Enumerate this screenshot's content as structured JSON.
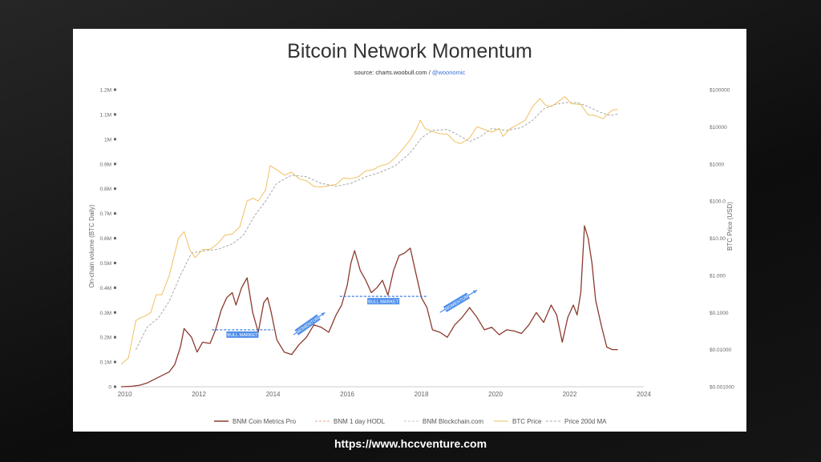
{
  "chart_data": {
    "type": "line",
    "title": "Bitcoin Network Momentum",
    "subtitle_source": "source: charts.woobull.com / ",
    "subtitle_handle": "@woonomic",
    "y_left_label": "On-chain volume (BTC Daily)",
    "y_right_label": "BTC Price (USD)",
    "y_left_ticks": [
      "0",
      "0.1M",
      "0.2M",
      "0.3M",
      "0.4M",
      "0.5M",
      "0.6M",
      "0.7M",
      "0.8M",
      "0.9M",
      "1M",
      "1.1M",
      "1.2M"
    ],
    "y_left_range": [
      0,
      1200000
    ],
    "y_right_ticks": [
      "$0.001000",
      "$0.01000",
      "$0.1000",
      "$1.000",
      "$10.00",
      "$100.0",
      "$1000",
      "$10000",
      "$100000"
    ],
    "y_right_log_range": [
      0.001,
      100000
    ],
    "x_ticks": [
      "2010",
      "2012",
      "2014",
      "2016",
      "2018",
      "2020",
      "2022",
      "2024"
    ],
    "x_range": [
      2009.9,
      2024
    ],
    "grid": false,
    "legend_position": "bottom",
    "series": [
      {
        "name": "BNM Coin Metrics Pro",
        "color": "#8b3a2e",
        "axis": "left",
        "x": [
          2009.9,
          2010.2,
          2010.4,
          2010.6,
          2010.8,
          2011.0,
          2011.2,
          2011.35,
          2011.5,
          2011.6,
          2011.8,
          2011.95,
          2012.1,
          2012.3,
          2012.45,
          2012.6,
          2012.75,
          2012.9,
          2013.0,
          2013.15,
          2013.3,
          2013.45,
          2013.6,
          2013.75,
          2013.85,
          2013.95,
          2014.1,
          2014.3,
          2014.5,
          2014.7,
          2014.9,
          2015.1,
          2015.3,
          2015.5,
          2015.7,
          2015.85,
          2016.0,
          2016.1,
          2016.2,
          2016.35,
          2016.5,
          2016.65,
          2016.8,
          2016.95,
          2017.1,
          2017.25,
          2017.4,
          2017.55,
          2017.7,
          2017.85,
          2018.0,
          2018.15,
          2018.3,
          2018.5,
          2018.7,
          2018.9,
          2019.1,
          2019.3,
          2019.5,
          2019.7,
          2019.9,
          2020.1,
          2020.3,
          2020.5,
          2020.7,
          2020.9,
          2021.1,
          2021.3,
          2021.5,
          2021.65,
          2021.8,
          2021.95,
          2022.1,
          2022.2,
          2022.3,
          2022.4,
          2022.5,
          2022.6,
          2022.7,
          2022.85,
          2023.0,
          2023.15,
          2023.3
        ],
        "values": [
          0,
          2000,
          6000,
          15000,
          30000,
          45000,
          60000,
          90000,
          160000,
          235000,
          200000,
          140000,
          180000,
          175000,
          230000,
          310000,
          360000,
          380000,
          330000,
          400000,
          440000,
          300000,
          220000,
          340000,
          360000,
          300000,
          190000,
          140000,
          130000,
          170000,
          200000,
          250000,
          240000,
          220000,
          290000,
          330000,
          410000,
          500000,
          550000,
          470000,
          430000,
          380000,
          400000,
          430000,
          370000,
          470000,
          530000,
          540000,
          560000,
          460000,
          360000,
          320000,
          230000,
          220000,
          200000,
          250000,
          280000,
          320000,
          280000,
          230000,
          240000,
          210000,
          230000,
          225000,
          215000,
          250000,
          300000,
          260000,
          330000,
          290000,
          180000,
          280000,
          330000,
          290000,
          380000,
          650000,
          600000,
          500000,
          350000,
          250000,
          160000,
          150000,
          150000
        ]
      },
      {
        "name": "BNM 1 day HODL",
        "color": "#e8a77f",
        "axis": "left",
        "x": [],
        "values": []
      },
      {
        "name": "BNM Blockchain.com",
        "color": "#c8c8c8",
        "axis": "left",
        "x": [],
        "values": []
      },
      {
        "name": "BTC Price",
        "color": "#f0c060",
        "axis": "right",
        "x": [
          2009.9,
          2010.1,
          2010.3,
          2010.4,
          2010.55,
          2010.7,
          2010.85,
          2011.0,
          2011.2,
          2011.45,
          2011.6,
          2011.75,
          2011.9,
          2012.1,
          2012.3,
          2012.5,
          2012.7,
          2012.9,
          2013.1,
          2013.3,
          2013.45,
          2013.6,
          2013.8,
          2013.92,
          2014.1,
          2014.3,
          2014.5,
          2014.7,
          2014.9,
          2015.1,
          2015.3,
          2015.5,
          2015.7,
          2015.9,
          2016.1,
          2016.3,
          2016.5,
          2016.7,
          2016.9,
          2017.1,
          2017.3,
          2017.5,
          2017.7,
          2017.85,
          2017.97,
          2018.1,
          2018.3,
          2018.5,
          2018.7,
          2018.9,
          2019.05,
          2019.3,
          2019.5,
          2019.7,
          2019.9,
          2020.1,
          2020.2,
          2020.4,
          2020.6,
          2020.8,
          2021.0,
          2021.2,
          2021.35,
          2021.5,
          2021.7,
          2021.87,
          2022.05,
          2022.3,
          2022.5,
          2022.7,
          2022.9,
          2023.0,
          2023.15,
          2023.3
        ],
        "values": [
          0.004,
          0.006,
          0.06,
          0.07,
          0.08,
          0.1,
          0.3,
          0.3,
          1,
          10,
          15,
          5,
          3,
          5,
          5,
          7,
          12,
          13,
          20,
          100,
          120,
          100,
          200,
          900,
          700,
          500,
          600,
          400,
          350,
          250,
          240,
          260,
          280,
          420,
          400,
          450,
          650,
          700,
          900,
          1000,
          1500,
          2500,
          4500,
          8000,
          15000,
          9000,
          7500,
          6500,
          6400,
          4000,
          3500,
          5000,
          10000,
          8500,
          7200,
          9000,
          5500,
          9000,
          11500,
          15000,
          35000,
          58000,
          38000,
          35000,
          48000,
          65000,
          42000,
          40000,
          21000,
          20000,
          16500,
          21000,
          28000,
          30000
        ]
      },
      {
        "name": "Price 200d MA",
        "color": "#a8a8a8",
        "axis": "right",
        "x": [
          2010.3,
          2010.6,
          2010.9,
          2011.2,
          2011.5,
          2011.8,
          2012.1,
          2012.5,
          2012.9,
          2013.2,
          2013.5,
          2013.8,
          2014.1,
          2014.5,
          2014.9,
          2015.3,
          2015.7,
          2016.1,
          2016.5,
          2016.9,
          2017.3,
          2017.7,
          2018.0,
          2018.3,
          2018.7,
          2019.0,
          2019.3,
          2019.6,
          2019.9,
          2020.3,
          2020.7,
          2021.0,
          2021.3,
          2021.6,
          2021.9,
          2022.2,
          2022.5,
          2022.8,
          2023.1,
          2023.3
        ],
        "values": [
          0.01,
          0.04,
          0.07,
          0.2,
          1,
          4,
          4.5,
          5,
          7,
          12,
          40,
          100,
          300,
          500,
          450,
          300,
          250,
          300,
          450,
          600,
          900,
          2000,
          5000,
          8000,
          8500,
          6000,
          4000,
          5500,
          9000,
          8000,
          9500,
          15000,
          30000,
          40000,
          45000,
          45000,
          35000,
          25000,
          20000,
          22000
        ]
      }
    ],
    "annotations": [
      {
        "label": "BULL MARKET",
        "kind": "bull",
        "x_start": 2012.35,
        "x_end": 2014.0,
        "y": 230000
      },
      {
        "label": "MOMENTUM",
        "kind": "momentum",
        "x_start": 2014.55,
        "x_end": 2015.4,
        "y_start": 210000,
        "y_end": 300000
      },
      {
        "label": "BULL MARKET",
        "kind": "bull",
        "x_start": 2015.8,
        "x_end": 2018.15,
        "y": 365000
      },
      {
        "label": "MOMENTUM",
        "kind": "momentum",
        "x_start": 2018.5,
        "x_end": 2019.5,
        "y_start": 300000,
        "y_end": 390000
      }
    ]
  },
  "footer": {
    "url": "https://www.hccventure.com"
  }
}
